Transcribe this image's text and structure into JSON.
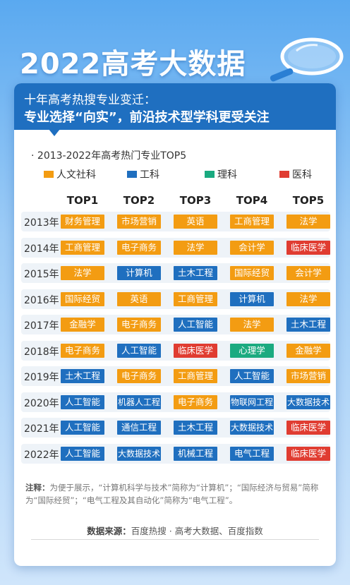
{
  "title": "2022高考大数据",
  "banner": {
    "line1": "十年高考热搜专业变迁：",
    "line2": "专业选择“向实”，前沿技术型学科更受关注"
  },
  "chart_data": {
    "type": "table",
    "subtitle": "2013-2022年高考热门专业TOP5",
    "legend": [
      {
        "name": "人文社科",
        "color": "#f39c12"
      },
      {
        "name": "工科",
        "color": "#1f6fbf"
      },
      {
        "name": "理科",
        "color": "#1aaa80"
      },
      {
        "name": "医科",
        "color": "#e03c31"
      }
    ],
    "columns": [
      "TOP1",
      "TOP2",
      "TOP3",
      "TOP4",
      "TOP5"
    ],
    "colors": {
      "人文社科": "#f39c12",
      "工科": "#1f6fbf",
      "理科": "#1aaa80",
      "医科": "#e03c31"
    },
    "rows": [
      {
        "year": "2013年",
        "items": [
          {
            "label": "财务管理",
            "cat": "人文社科"
          },
          {
            "label": "市场营销",
            "cat": "人文社科"
          },
          {
            "label": "英语",
            "cat": "人文社科"
          },
          {
            "label": "工商管理",
            "cat": "人文社科"
          },
          {
            "label": "法学",
            "cat": "人文社科"
          }
        ]
      },
      {
        "year": "2014年",
        "items": [
          {
            "label": "工商管理",
            "cat": "人文社科"
          },
          {
            "label": "电子商务",
            "cat": "人文社科"
          },
          {
            "label": "法学",
            "cat": "人文社科"
          },
          {
            "label": "会计学",
            "cat": "人文社科"
          },
          {
            "label": "临床医学",
            "cat": "医科"
          }
        ]
      },
      {
        "year": "2015年",
        "items": [
          {
            "label": "法学",
            "cat": "人文社科"
          },
          {
            "label": "计算机",
            "cat": "工科"
          },
          {
            "label": "土木工程",
            "cat": "工科"
          },
          {
            "label": "国际经贸",
            "cat": "人文社科"
          },
          {
            "label": "会计学",
            "cat": "人文社科"
          }
        ]
      },
      {
        "year": "2016年",
        "items": [
          {
            "label": "国际经贸",
            "cat": "人文社科"
          },
          {
            "label": "英语",
            "cat": "人文社科"
          },
          {
            "label": "工商管理",
            "cat": "人文社科"
          },
          {
            "label": "计算机",
            "cat": "工科"
          },
          {
            "label": "法学",
            "cat": "人文社科"
          }
        ]
      },
      {
        "year": "2017年",
        "items": [
          {
            "label": "金融学",
            "cat": "人文社科"
          },
          {
            "label": "电子商务",
            "cat": "人文社科"
          },
          {
            "label": "人工智能",
            "cat": "工科"
          },
          {
            "label": "法学",
            "cat": "人文社科"
          },
          {
            "label": "土木工程",
            "cat": "工科"
          }
        ]
      },
      {
        "year": "2018年",
        "items": [
          {
            "label": "电子商务",
            "cat": "人文社科"
          },
          {
            "label": "人工智能",
            "cat": "工科"
          },
          {
            "label": "临床医学",
            "cat": "医科"
          },
          {
            "label": "心理学",
            "cat": "理科"
          },
          {
            "label": "金融学",
            "cat": "人文社科"
          }
        ]
      },
      {
        "year": "2019年",
        "items": [
          {
            "label": "土木工程",
            "cat": "工科"
          },
          {
            "label": "电子商务",
            "cat": "人文社科"
          },
          {
            "label": "工商管理",
            "cat": "人文社科"
          },
          {
            "label": "人工智能",
            "cat": "工科"
          },
          {
            "label": "市场营销",
            "cat": "人文社科"
          }
        ]
      },
      {
        "year": "2020年",
        "items": [
          {
            "label": "人工智能",
            "cat": "工科"
          },
          {
            "label": "机器人工程",
            "cat": "工科"
          },
          {
            "label": "电子商务",
            "cat": "人文社科"
          },
          {
            "label": "物联网工程",
            "cat": "工科"
          },
          {
            "label": "大数据技术",
            "cat": "工科"
          }
        ]
      },
      {
        "year": "2021年",
        "items": [
          {
            "label": "人工智能",
            "cat": "工科"
          },
          {
            "label": "通信工程",
            "cat": "工科"
          },
          {
            "label": "土木工程",
            "cat": "工科"
          },
          {
            "label": "大数据技术",
            "cat": "工科"
          },
          {
            "label": "临床医学",
            "cat": "医科"
          }
        ]
      },
      {
        "year": "2022年",
        "items": [
          {
            "label": "人工智能",
            "cat": "工科"
          },
          {
            "label": "大数据技术",
            "cat": "工科"
          },
          {
            "label": "机械工程",
            "cat": "工科"
          },
          {
            "label": "电气工程",
            "cat": "工科"
          },
          {
            "label": "临床医学",
            "cat": "医科"
          }
        ]
      }
    ]
  },
  "note": {
    "label": "注释：",
    "text": "为便于展示，“计算机科学与技术”简称为“计算机”；“国际经济与贸易”简称为“国际经贸”；“电气工程及其自动化”简称为“电气工程”。"
  },
  "source": {
    "label": "数据来源：",
    "text": "百度热搜 · 高考大数据、百度指数"
  }
}
